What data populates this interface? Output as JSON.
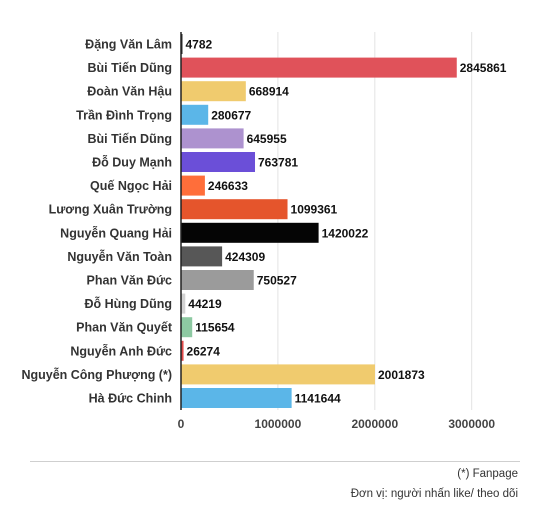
{
  "chart_data": {
    "type": "bar",
    "orientation": "horizontal",
    "categories": [
      "Đặng Văn Lâm",
      "Bùi Tiến Dũng",
      "Đoàn Văn Hậu",
      "Trần Đình Trọng",
      "Bùi Tiến Dũng",
      "Đỗ Duy Mạnh",
      "Quế Ngọc Hải",
      "Lương Xuân Trường",
      "Nguyễn Quang Hải",
      "Nguyễn Văn Toàn",
      "Phan Văn Đức",
      "Đỗ Hùng Dũng",
      "Phan Văn Quyết",
      "Nguyễn Anh Đức",
      "Nguyễn Công Phượng (*)",
      "Hà Đức Chinh"
    ],
    "values": [
      4782,
      2845861,
      668914,
      280677,
      645955,
      763781,
      246633,
      1099361,
      1420022,
      424309,
      750527,
      44219,
      115654,
      26274,
      2001873,
      1141644
    ],
    "value_labels": [
      "4782",
      "2845861",
      "668914",
      "280677",
      "645955",
      "763781",
      "246633",
      "1099361",
      "1420022",
      "424309",
      "750527",
      "44219",
      "115654",
      "26274",
      "2001873",
      "1141644"
    ],
    "colors": [
      "#2b2b2b",
      "#e0525a",
      "#f0cb6e",
      "#5bb6e8",
      "#ad92cf",
      "#6b4fd8",
      "#ff6e3a",
      "#e5552c",
      "#050505",
      "#575757",
      "#9b9b9b",
      "#d2d2d2",
      "#8dc9a2",
      "#e34b4b",
      "#f0cb6e",
      "#5bb6e8"
    ],
    "x_ticks": [
      0,
      1000000,
      2000000,
      3000000
    ],
    "x_tick_labels": [
      "0",
      "1000000",
      "2000000",
      "3000000"
    ],
    "xlim": [
      0,
      3400000
    ],
    "grid": true
  },
  "footnotes": {
    "fanpage": "(*) Fanpage",
    "unit": "Đơn vị: người nhấn like/ theo dõi"
  }
}
